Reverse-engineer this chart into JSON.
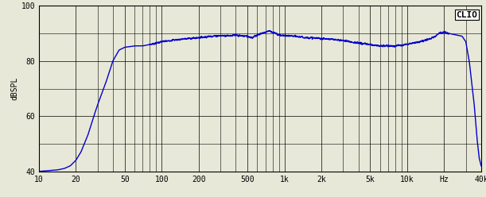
{
  "title": "",
  "ylabel": "dBSPL",
  "xlabel": "Hz",
  "clio_label": "CLIO",
  "xmin": 10,
  "xmax": 40000,
  "ymin": 40,
  "ymax": 100,
  "yticks": [
    40,
    60,
    80,
    100
  ],
  "xticks": [
    10,
    20,
    50,
    100,
    200,
    500,
    1000,
    2000,
    5000,
    10000,
    20000,
    40000
  ],
  "xticklabels": [
    "10",
    "20",
    "50",
    "100",
    "200",
    "500",
    "1k",
    "2k",
    "5k",
    "10k",
    "Hz",
    "40k"
  ],
  "line_color": "#0000cc",
  "bg_color": "#e8e8d8",
  "grid_color": "#000000",
  "line_width": 1.0
}
